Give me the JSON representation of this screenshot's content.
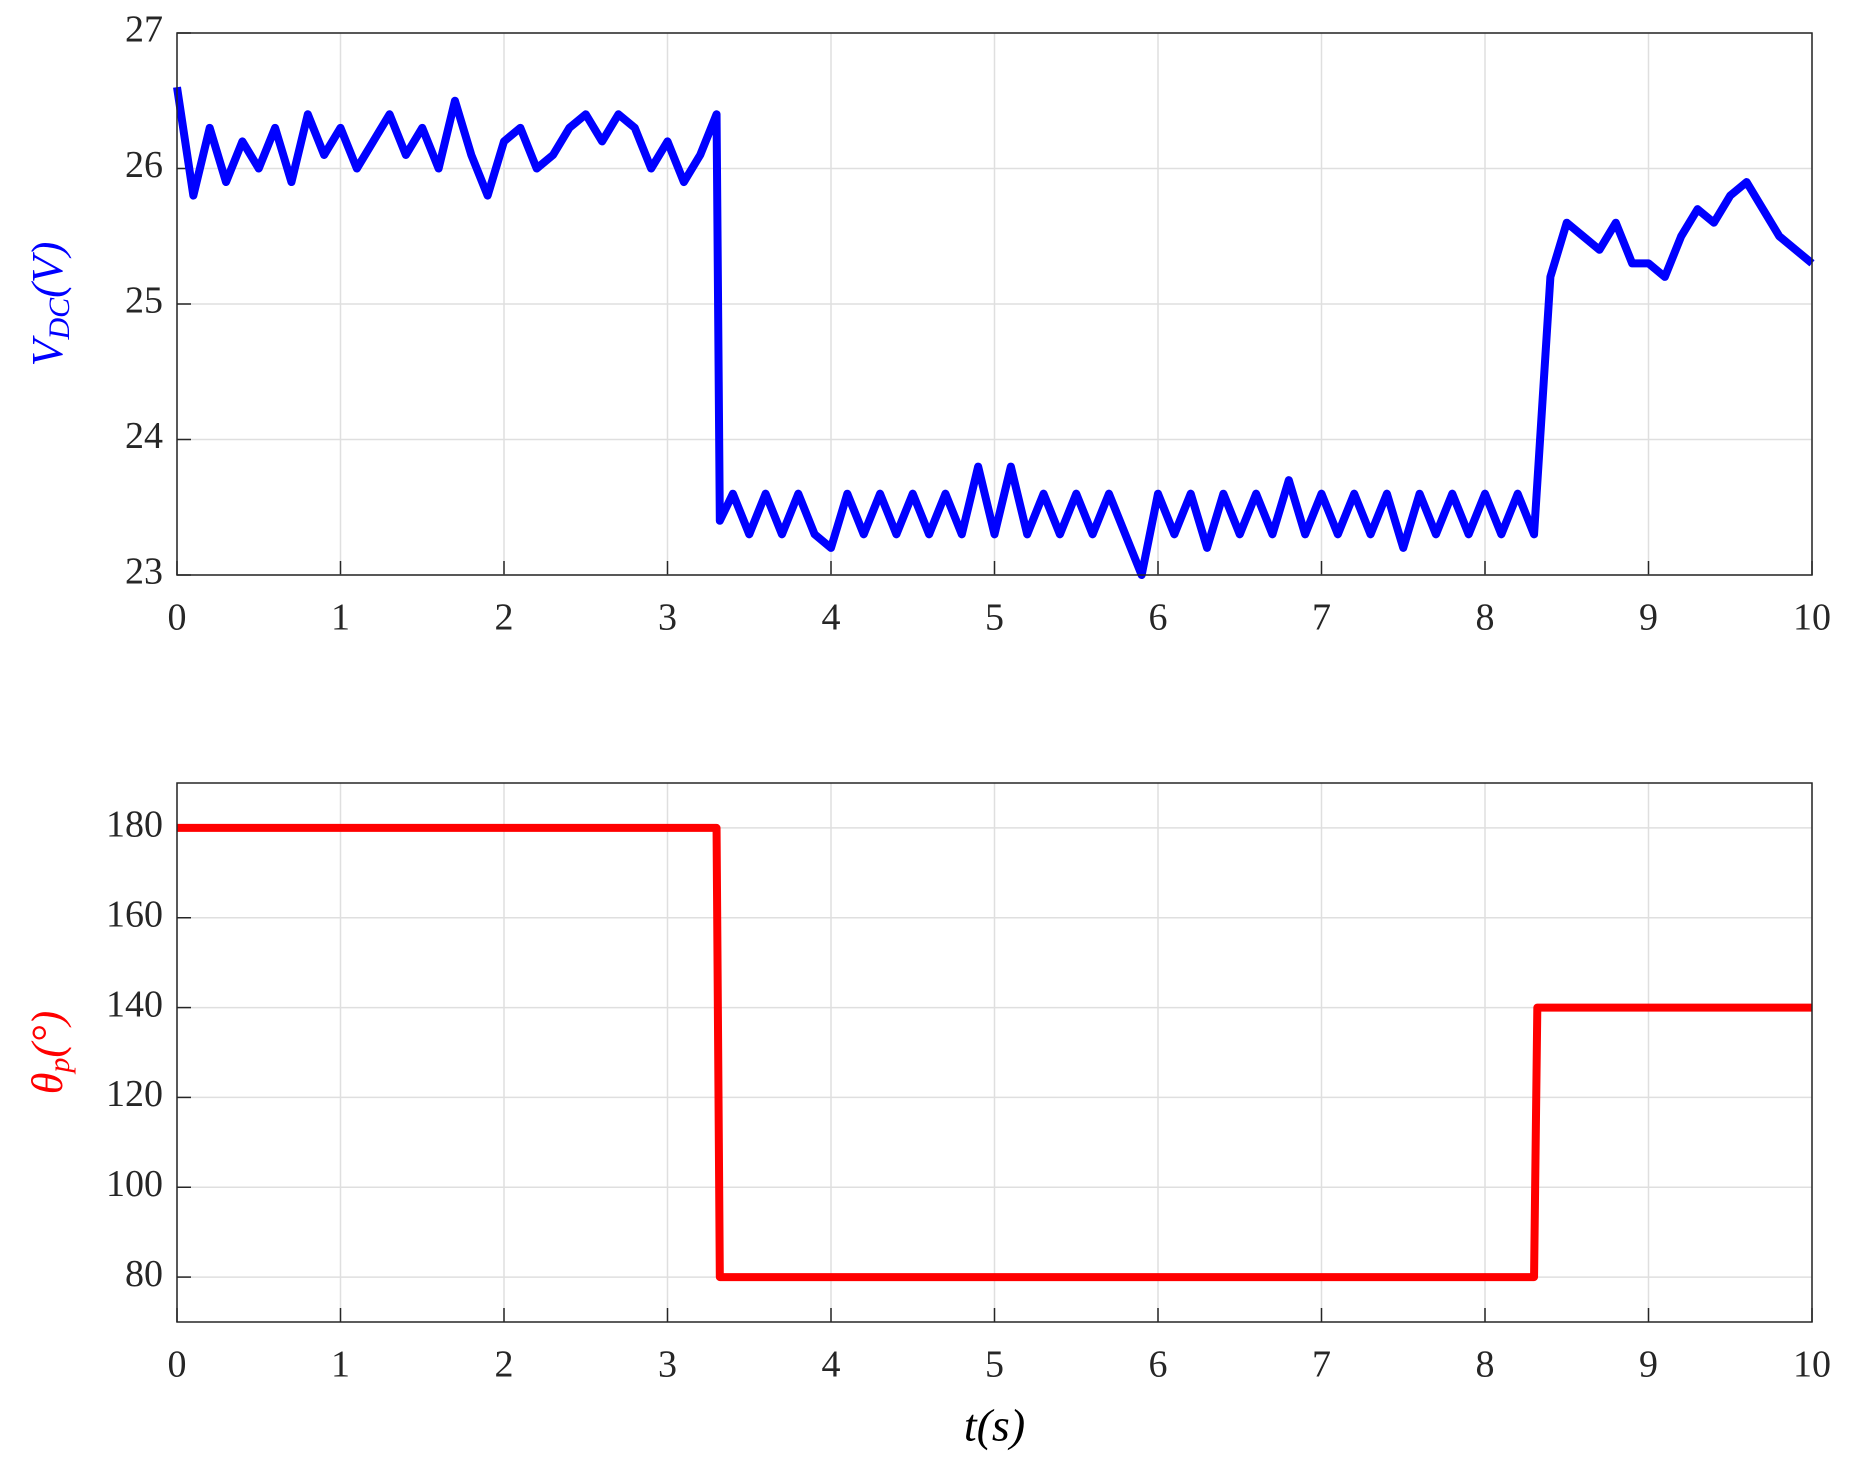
{
  "chart_data": [
    {
      "type": "line",
      "ylabel": [
        "V",
        "DC",
        "(V)"
      ],
      "ylabel_color": "#0000ff",
      "x": [
        0,
        0.1,
        0.2,
        0.3,
        0.4,
        0.5,
        0.6,
        0.7,
        0.8,
        0.9,
        1.0,
        1.1,
        1.2,
        1.3,
        1.4,
        1.5,
        1.6,
        1.7,
        1.8,
        1.9,
        2.0,
        2.1,
        2.2,
        2.3,
        2.4,
        2.5,
        2.6,
        2.7,
        2.8,
        2.9,
        3.0,
        3.1,
        3.2,
        3.3,
        3.32,
        3.4,
        3.5,
        3.6,
        3.7,
        3.8,
        3.9,
        4.0,
        4.1,
        4.2,
        4.3,
        4.4,
        4.5,
        4.6,
        4.7,
        4.8,
        4.9,
        5.0,
        5.1,
        5.2,
        5.3,
        5.4,
        5.5,
        5.6,
        5.7,
        5.8,
        5.9,
        6.0,
        6.1,
        6.2,
        6.3,
        6.4,
        6.5,
        6.6,
        6.7,
        6.8,
        6.9,
        7.0,
        7.1,
        7.2,
        7.3,
        7.4,
        7.5,
        7.6,
        7.7,
        7.8,
        7.9,
        8.0,
        8.1,
        8.2,
        8.3,
        8.4,
        8.5,
        8.6,
        8.7,
        8.8,
        8.9,
        9.0,
        9.1,
        9.2,
        9.3,
        9.4,
        9.5,
        9.6,
        9.7,
        9.8,
        9.9,
        10.0
      ],
      "series": [
        {
          "color": "#0000ff",
          "values": [
            26.6,
            25.8,
            26.3,
            25.9,
            26.2,
            26.0,
            26.3,
            25.9,
            26.4,
            26.1,
            26.3,
            26.0,
            26.2,
            26.4,
            26.1,
            26.3,
            26.0,
            26.5,
            26.1,
            25.8,
            26.2,
            26.3,
            26.0,
            26.1,
            26.3,
            26.4,
            26.2,
            26.4,
            26.3,
            26.0,
            26.2,
            25.9,
            26.1,
            26.4,
            23.4,
            23.6,
            23.3,
            23.6,
            23.3,
            23.6,
            23.3,
            23.2,
            23.6,
            23.3,
            23.6,
            23.3,
            23.6,
            23.3,
            23.6,
            23.3,
            23.8,
            23.3,
            23.8,
            23.3,
            23.6,
            23.3,
            23.6,
            23.3,
            23.6,
            23.3,
            23.0,
            23.6,
            23.3,
            23.6,
            23.2,
            23.6,
            23.3,
            23.6,
            23.3,
            23.7,
            23.3,
            23.6,
            23.3,
            23.6,
            23.3,
            23.6,
            23.2,
            23.6,
            23.3,
            23.6,
            23.3,
            23.6,
            23.3,
            23.6,
            23.3,
            25.2,
            25.6,
            25.5,
            25.4,
            25.6,
            25.3,
            25.3,
            25.2,
            25.5,
            25.7,
            25.6,
            25.8,
            25.9,
            25.7,
            25.5,
            25.4,
            25.3
          ]
        }
      ],
      "xlim": [
        0,
        10
      ],
      "xticks": [
        0,
        1,
        2,
        3,
        4,
        5,
        6,
        7,
        8,
        9,
        10
      ],
      "ylim": [
        23,
        27
      ],
      "yticks": [
        23,
        24,
        25,
        26,
        27
      ],
      "grid": true
    },
    {
      "type": "line",
      "ylabel": [
        "θ",
        "p",
        "(°)"
      ],
      "ylabel_color": "#ff0000",
      "xlabel": "t(s)",
      "x": [
        0,
        3.3,
        3.32,
        8.3,
        8.32,
        10
      ],
      "series": [
        {
          "color": "#ff0000",
          "values": [
            180,
            180,
            80,
            80,
            140,
            140
          ]
        }
      ],
      "xlim": [
        0,
        10
      ],
      "xticks": [
        0,
        1,
        2,
        3,
        4,
        5,
        6,
        7,
        8,
        9,
        10
      ],
      "ylim": [
        70,
        190
      ],
      "yticks": [
        80,
        100,
        120,
        140,
        160,
        180
      ],
      "grid": true
    }
  ]
}
